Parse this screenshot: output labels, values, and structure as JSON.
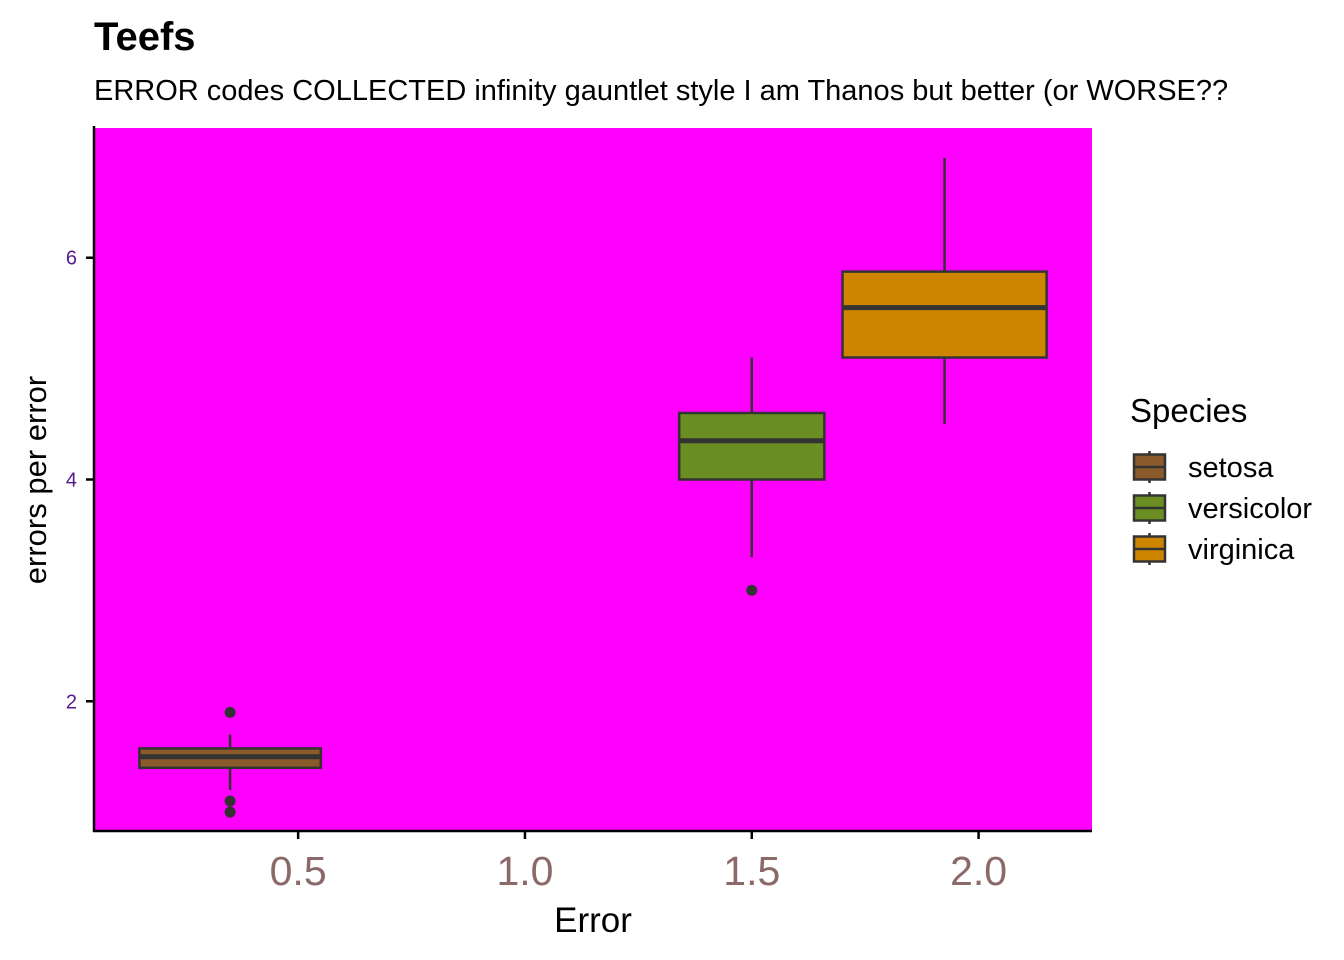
{
  "chart_data": {
    "type": "boxplot",
    "title": "Teefs",
    "subtitle": "ERROR codes COLLECTED infinity gauntlet style I am Thanos but better (or WORSE??",
    "xlabel": "Error",
    "ylabel": "errors per error",
    "xlim": [
      0.05,
      2.25
    ],
    "ylim": [
      0.83,
      7.17
    ],
    "x_ticks": [
      0.5,
      1.0,
      1.5,
      2.0
    ],
    "x_tick_labels": [
      "0.5",
      "1.0",
      "1.5",
      "2.0"
    ],
    "y_ticks": [
      2,
      4,
      6
    ],
    "y_tick_labels": [
      "2",
      "4",
      "6"
    ],
    "grid": false,
    "legend": {
      "title": "Species",
      "position": "right",
      "entries": [
        "setosa",
        "versicolor",
        "virginica"
      ]
    },
    "series": [
      {
        "name": "setosa",
        "color": "#8B5A2B",
        "x_range": [
          0.15,
          0.55
        ],
        "x_center": 0.35,
        "min": 1.2,
        "q1": 1.4,
        "median": 1.5,
        "q3": 1.575,
        "max": 1.7,
        "outliers": [
          1.9,
          1.1,
          1.0
        ]
      },
      {
        "name": "versicolor",
        "color": "#6B8E23",
        "x_range": [
          1.34,
          1.66
        ],
        "x_center": 1.5,
        "min": 3.3,
        "q1": 4.0,
        "median": 4.35,
        "q3": 4.6,
        "max": 5.1,
        "outliers": [
          3.0
        ]
      },
      {
        "name": "virginica",
        "color": "#CD8500",
        "x_range": [
          1.7,
          2.15
        ],
        "x_center": 1.925,
        "min": 4.5,
        "q1": 5.1,
        "median": 5.55,
        "q3": 5.875,
        "max": 6.9,
        "outliers": []
      }
    ]
  },
  "style": {
    "panel_background": "#FF00FF",
    "x_tick_label_color": "#8B6969",
    "y_tick_label_color": "#551A8B",
    "box_outline_color": "#333333",
    "axis_color": "#000000"
  }
}
